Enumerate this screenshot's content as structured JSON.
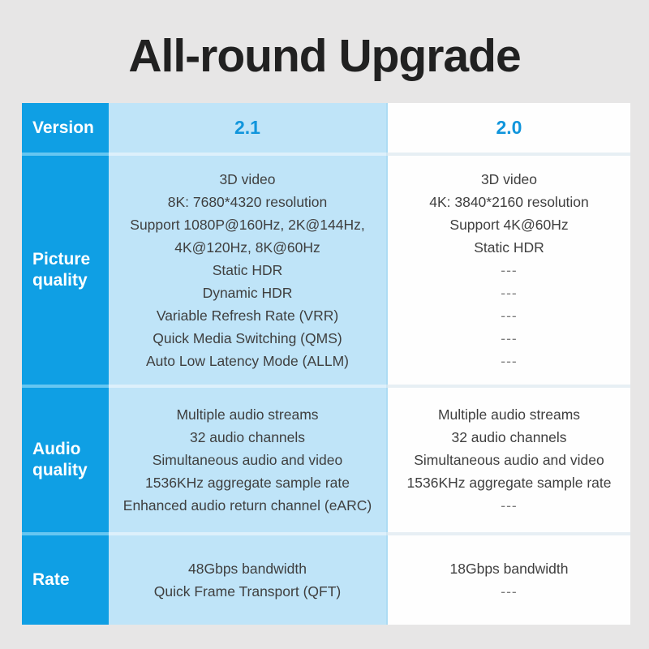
{
  "title": "All-round Upgrade",
  "table": {
    "header": {
      "label": "Version",
      "v21": "2.1",
      "v20": "2.0"
    },
    "rows": [
      {
        "label": "Picture quality",
        "v21": [
          "3D video",
          "8K: 7680*4320 resolution",
          "Support 1080P@160Hz, 2K@144Hz,",
          "4K@120Hz, 8K@60Hz",
          "Static HDR",
          "Dynamic HDR",
          "Variable Refresh Rate (VRR)",
          "Quick Media Switching (QMS)",
          "Auto Low Latency Mode (ALLM)"
        ],
        "v20": [
          "3D video",
          "4K: 3840*2160 resolution",
          "Support 4K@60Hz",
          "Static HDR",
          "---",
          "---",
          "---",
          "---",
          "---"
        ]
      },
      {
        "label": "Audio quality",
        "v21": [
          "Multiple audio streams",
          "32 audio channels",
          "Simultaneous audio and video",
          "1536KHz aggregate sample rate",
          "Enhanced audio return channel (eARC)"
        ],
        "v20": [
          "Multiple audio streams",
          "32 audio channels",
          "Simultaneous audio and video",
          "1536KHz aggregate sample rate",
          "---"
        ]
      },
      {
        "label": "Rate",
        "v21": [
          "48Gbps bandwidth",
          "Quick Frame Transport (QFT)"
        ],
        "v20": [
          "18Gbps bandwidth",
          "---"
        ]
      }
    ]
  },
  "colors": {
    "accent_blue": "#0f9fe4",
    "light_blue": "#bfe4f8",
    "background": "#e7e6e6",
    "version_text": "#1095dc",
    "body_text": "#3f3f3f",
    "dash_text": "#7d7d7d"
  }
}
